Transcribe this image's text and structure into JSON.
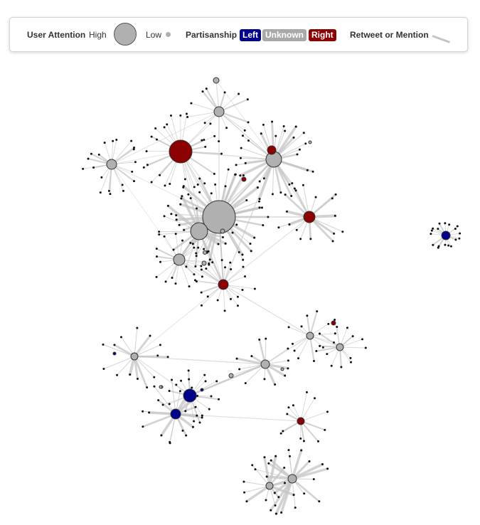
{
  "legend": {
    "attention_label": "User Attention",
    "high_label": "High",
    "low_label": "Low",
    "partisanship_label": "Partisanship",
    "left_label": "Left",
    "unknown_label": "Unknown",
    "right_label": "Right",
    "edge_label": "Retweet or Mention"
  },
  "colors": {
    "left": "#00008b",
    "unknown": "#b0b0b0",
    "right": "#8b0000",
    "edge": "#c4c4c4",
    "leaf": "#111111"
  }
}
